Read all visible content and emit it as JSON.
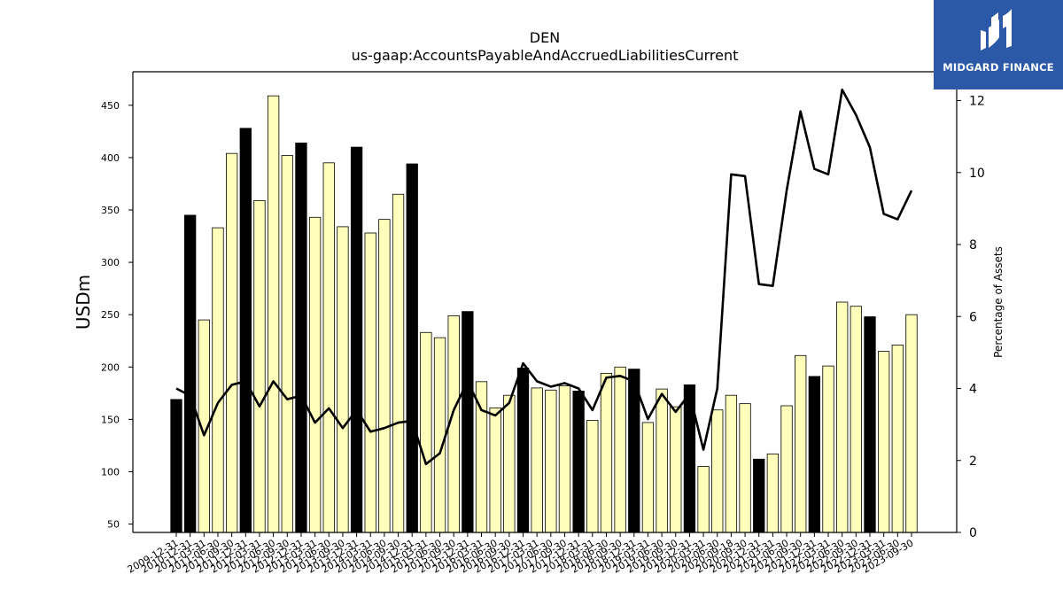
{
  "brand": {
    "name": "MIDGARD FINANCE"
  },
  "chart_data": {
    "type": "bar",
    "title": "DEN",
    "subtitle": "us-gaap:AccountsPayableAndAccruedLiabilitiesCurrent",
    "ylabel": "USDm",
    "y2label": "Percentage of Assets",
    "ylim": [
      42,
      482
    ],
    "y2lim": [
      0,
      12.8
    ],
    "yticks": [
      50,
      100,
      150,
      200,
      250,
      300,
      350,
      400,
      450
    ],
    "y2ticks": [
      0,
      2,
      4,
      6,
      8,
      10,
      12
    ],
    "colors": {
      "annual": "#000000",
      "quarter": "#ffffbb",
      "line": "#000000"
    },
    "categories": [
      "2009-12-31",
      "2010-12-31",
      "2011-03-31",
      "2011-06-30",
      "2011-09-30",
      "2011-12-31",
      "2012-03-31",
      "2012-06-30",
      "2012-09-30",
      "2012-12-31",
      "2013-03-31",
      "2013-06-30",
      "2013-09-30",
      "2013-12-31",
      "2014-03-31",
      "2014-06-30",
      "2014-09-30",
      "2014-12-31",
      "2015-03-31",
      "2015-06-30",
      "2015-09-30",
      "2015-12-31",
      "2016-03-31",
      "2016-06-30",
      "2016-09-30",
      "2016-12-31",
      "2017-03-31",
      "2017-06-30",
      "2017-09-30",
      "2017-12-31",
      "2018-03-31",
      "2018-06-30",
      "2018-09-30",
      "2018-12-31",
      "2019-03-31",
      "2019-06-30",
      "2019-09-30",
      "2019-12-31",
      "2020-03-31",
      "2020-06-30",
      "2020-09-18",
      "2020-09-30",
      "2020-12-31",
      "2021-03-31",
      "2021-06-30",
      "2021-09-30",
      "2021-12-31",
      "2022-03-31",
      "2022-06-30",
      "2022-09-30",
      "2022-12-31",
      "2023-03-31",
      "2023-06-30",
      "2023-09-30"
    ],
    "series": [
      {
        "values": [
          169,
          345,
          245,
          333,
          404,
          428,
          359,
          459,
          402,
          414,
          343,
          395,
          334,
          410,
          328,
          341,
          365,
          394,
          233,
          228,
          249,
          253,
          186,
          161,
          173,
          199,
          180,
          178,
          182,
          177,
          149,
          194,
          200,
          198,
          147,
          179,
          162,
          183,
          105,
          159,
          173,
          165,
          112,
          117,
          163,
          211,
          191,
          201,
          262,
          258,
          248,
          215,
          221,
          250
        ],
        "annual": [
          true,
          true,
          false,
          false,
          false,
          true,
          false,
          false,
          false,
          true,
          false,
          false,
          false,
          true,
          false,
          false,
          false,
          true,
          false,
          false,
          false,
          true,
          false,
          false,
          false,
          true,
          false,
          false,
          false,
          true,
          false,
          false,
          false,
          true,
          false,
          false,
          false,
          true,
          false,
          false,
          false,
          false,
          true,
          false,
          false,
          false,
          true,
          false,
          false,
          false,
          true,
          false,
          false,
          false
        ]
      },
      {
        "values": [
          4.0,
          3.8,
          2.7,
          3.6,
          4.1,
          4.2,
          3.5,
          4.2,
          3.7,
          3.8,
          3.05,
          3.45,
          2.9,
          3.4,
          2.8,
          2.9,
          3.05,
          3.1,
          1.9,
          2.2,
          3.4,
          4.2,
          3.4,
          3.25,
          3.6,
          4.7,
          4.2,
          4.05,
          4.15,
          4.0,
          3.4,
          4.3,
          4.35,
          4.2,
          3.15,
          3.85,
          3.35,
          3.85,
          2.3,
          4.0,
          9.95,
          9.9,
          6.9,
          6.85,
          9.5,
          11.7,
          10.1,
          9.95,
          12.3,
          11.6,
          10.7,
          8.85,
          8.7,
          9.5
        ]
      }
    ],
    "grid": false
  }
}
